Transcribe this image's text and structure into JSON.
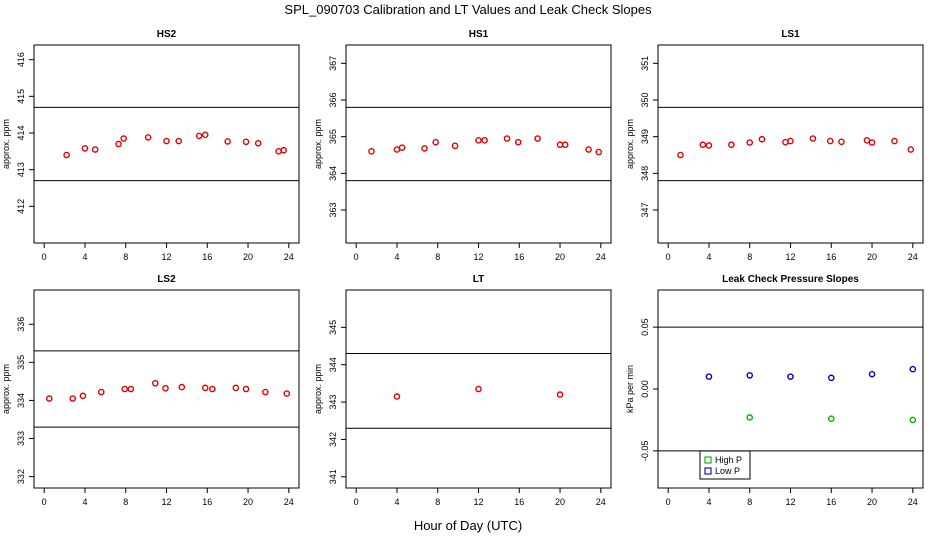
{
  "figure": {
    "title": "SPL_090703  Calibration and LT Values and Leak Check Slopes",
    "xlabel": "Hour of Day (UTC)"
  },
  "chart_data": [
    {
      "id": "hs2",
      "type": "scatter",
      "title": "HS2",
      "ylabel": "approx. ppm",
      "xlim": [
        -1,
        25
      ],
      "ylim": [
        411,
        416.4
      ],
      "xticks": [
        0,
        4,
        8,
        12,
        16,
        20,
        24
      ],
      "yticks": [
        412,
        413,
        414,
        415,
        416
      ],
      "hlines": [
        412.7,
        414.7
      ],
      "series": [
        {
          "name": "HS2",
          "color": "#e00000",
          "x": [
            2.2,
            4,
            5,
            7.3,
            7.8,
            10.2,
            12,
            13.2,
            15.2,
            15.8,
            18,
            19.8,
            21,
            23,
            23.5
          ],
          "y": [
            413.4,
            413.58,
            413.55,
            413.7,
            413.85,
            413.88,
            413.78,
            413.78,
            413.92,
            413.95,
            413.77,
            413.76,
            413.72,
            413.5,
            413.53
          ]
        }
      ]
    },
    {
      "id": "hs1",
      "type": "scatter",
      "title": "HS1",
      "ylabel": "approx. ppm",
      "xlim": [
        -1,
        25
      ],
      "ylim": [
        362.1,
        367.5
      ],
      "xticks": [
        0,
        4,
        8,
        12,
        16,
        20,
        24
      ],
      "yticks": [
        363,
        364,
        365,
        366,
        367
      ],
      "hlines": [
        363.8,
        365.8
      ],
      "series": [
        {
          "name": "HS1",
          "color": "#e00000",
          "x": [
            1.5,
            4,
            4.5,
            6.7,
            7.8,
            9.7,
            12,
            12.6,
            14.8,
            15.9,
            17.8,
            20,
            20.5,
            22.8,
            23.8
          ],
          "y": [
            364.6,
            364.65,
            364.7,
            364.68,
            364.85,
            364.75,
            364.9,
            364.9,
            364.95,
            364.85,
            364.95,
            364.78,
            364.78,
            364.65,
            364.58
          ]
        }
      ]
    },
    {
      "id": "ls1",
      "type": "scatter",
      "title": "LS1",
      "ylabel": "approx. ppm",
      "xlim": [
        -1,
        25
      ],
      "ylim": [
        346.1,
        351.5
      ],
      "xticks": [
        0,
        4,
        8,
        12,
        16,
        20,
        24
      ],
      "yticks": [
        347,
        348,
        349,
        350,
        351
      ],
      "hlines": [
        347.8,
        349.8
      ],
      "series": [
        {
          "name": "LS1",
          "color": "#e00000",
          "x": [
            1.2,
            3.4,
            4,
            6.2,
            8,
            9.2,
            11.5,
            12,
            14.2,
            15.9,
            17,
            19.5,
            20,
            22.2,
            23.8
          ],
          "y": [
            348.5,
            348.78,
            348.76,
            348.78,
            348.84,
            348.93,
            348.85,
            348.88,
            348.95,
            348.88,
            348.86,
            348.9,
            348.84,
            348.88,
            348.65
          ]
        }
      ]
    },
    {
      "id": "ls2",
      "type": "scatter",
      "title": "LS2",
      "ylabel": "approx. ppm",
      "xlim": [
        -1,
        25
      ],
      "ylim": [
        331.7,
        336.9
      ],
      "xticks": [
        0,
        4,
        8,
        12,
        16,
        20,
        24
      ],
      "yticks": [
        332,
        333,
        334,
        335,
        336
      ],
      "hlines": [
        333.3,
        335.3
      ],
      "series": [
        {
          "name": "LS2",
          "color": "#e00000",
          "x": [
            0.5,
            2.8,
            3.8,
            5.6,
            7.9,
            8.5,
            10.9,
            11.9,
            13.5,
            15.8,
            16.5,
            18.8,
            19.8,
            21.7,
            23.8
          ],
          "y": [
            334.05,
            334.05,
            334.12,
            334.22,
            334.3,
            334.3,
            334.45,
            334.32,
            334.35,
            334.33,
            334.3,
            334.33,
            334.3,
            334.22,
            334.18
          ]
        }
      ]
    },
    {
      "id": "lt",
      "type": "scatter",
      "title": "LT",
      "ylabel": "approx. ppm",
      "xlim": [
        -1,
        25
      ],
      "ylim": [
        340.7,
        346
      ],
      "xticks": [
        0,
        4,
        8,
        12,
        16,
        20,
        24
      ],
      "yticks": [
        341,
        342,
        343,
        344,
        345
      ],
      "hlines": [
        342.3,
        344.3
      ],
      "series": [
        {
          "name": "LT",
          "color": "#e00000",
          "x": [
            4,
            12,
            20
          ],
          "y": [
            343.15,
            343.35,
            343.2
          ]
        }
      ]
    },
    {
      "id": "leak",
      "type": "scatter",
      "title": "Leak Check Pressure Slopes",
      "ylabel": "kPa per min",
      "xlim": [
        -1,
        25
      ],
      "ylim": [
        -0.08,
        0.08
      ],
      "xticks": [
        0,
        4,
        8,
        12,
        16,
        20,
        24
      ],
      "yticks": [
        -0.05,
        0.0,
        0.05
      ],
      "yticklabels": [
        "-0.05",
        "0.00",
        "0.05"
      ],
      "hlines": [
        -0.05,
        0.05
      ],
      "legend": {
        "position": "bottom-left",
        "entries": [
          "High P",
          "Low P"
        ]
      },
      "series": [
        {
          "name": "High P",
          "color": "#00b000",
          "marker": "circle",
          "x": [
            8,
            16,
            24
          ],
          "y": [
            -0.023,
            -0.024,
            -0.025
          ]
        },
        {
          "name": "Low P",
          "color": "#0000c0",
          "marker": "circle",
          "x": [
            4,
            8,
            12,
            16,
            20,
            24
          ],
          "y": [
            0.01,
            0.011,
            0.01,
            0.009,
            0.012,
            0.016
          ]
        }
      ]
    }
  ]
}
